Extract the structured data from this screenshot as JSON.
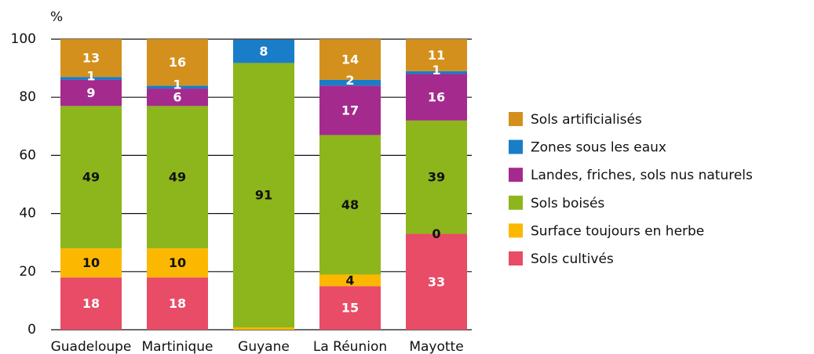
{
  "chart_data": {
    "type": "stacked_bar",
    "y_label": "%",
    "categories": [
      "Guadeloupe",
      "Martinique",
      "Guyane",
      "La Réunion",
      "Mayotte"
    ],
    "ylim": [
      0,
      100
    ],
    "yticks": [
      0,
      20,
      40,
      60,
      80,
      100
    ],
    "grid": true,
    "legend": "right",
    "series": [
      {
        "name": "Sols cultivés",
        "color": "#e84c66",
        "label_color": "#ffffff",
        "values": [
          18,
          18,
          0,
          15,
          33
        ],
        "value_labels": [
          "18",
          "18",
          null,
          "15",
          "33"
        ]
      },
      {
        "name": "Surface toujours en herbe",
        "color": "#fcb800",
        "label_color": "#111111",
        "values": [
          10,
          10,
          0.8,
          4,
          0
        ],
        "value_labels": [
          "10",
          "10",
          null,
          "4",
          "0"
        ]
      },
      {
        "name": "Sols boisés",
        "color": "#8db51c",
        "label_color": "#111111",
        "values": [
          49,
          49,
          91,
          48,
          39
        ],
        "value_labels": [
          "49",
          "49",
          "91",
          "48",
          "39"
        ]
      },
      {
        "name": "Landes, friches, sols nus naturels",
        "color": "#a52a8d",
        "label_color": "#ffffff",
        "values": [
          9,
          6,
          0,
          17,
          16
        ],
        "value_labels": [
          "9",
          "6",
          null,
          "17",
          "16"
        ]
      },
      {
        "name": "Zones sous les eaux",
        "color": "#1a7dc7",
        "label_color": "#ffffff",
        "values": [
          1,
          1,
          8,
          2,
          1
        ],
        "value_labels": [
          "1",
          "1",
          "8",
          "2",
          "1"
        ]
      },
      {
        "name": "Sols artificialisés",
        "color": "#d4901c",
        "label_color": "#ffffff",
        "values": [
          13,
          16,
          0,
          14,
          11
        ],
        "value_labels": [
          "13",
          "16",
          null,
          "14",
          "11"
        ]
      }
    ]
  }
}
